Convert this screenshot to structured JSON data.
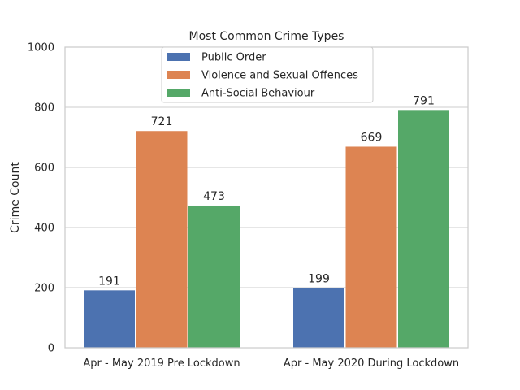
{
  "chart_data": {
    "type": "bar",
    "title": "Most Common Crime Types",
    "xlabel": "",
    "ylabel": "Crime Count",
    "ylim": [
      0,
      1000
    ],
    "yticks": [
      0,
      200,
      400,
      600,
      800,
      1000
    ],
    "categories": [
      "Apr - May 2019 Pre Lockdown",
      "Apr - May 2020 During Lockdown"
    ],
    "series": [
      {
        "name": "Public Order",
        "color": "#4c72b0",
        "values": [
          191,
          199
        ]
      },
      {
        "name": "Violence and Sexual Offences",
        "color": "#dd8452",
        "values": [
          721,
          669
        ]
      },
      {
        "name": "Anti-Social Behaviour",
        "color": "#55a868",
        "values": [
          473,
          791
        ]
      }
    ],
    "grid": true,
    "legend_position": "top-center"
  }
}
